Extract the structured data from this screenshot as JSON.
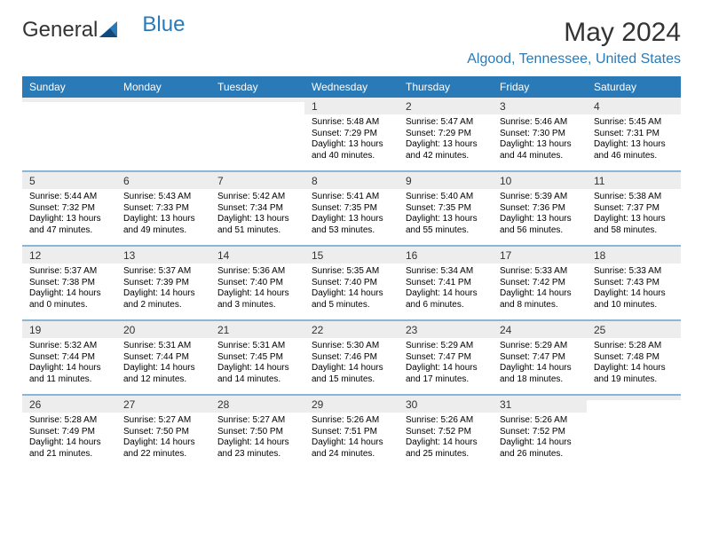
{
  "brand": {
    "part1": "General",
    "part2": "Blue"
  },
  "title": "May 2024",
  "location": "Algood, Tennessee, United States",
  "colors": {
    "accent": "#2a7ab8",
    "header_bg": "#2a7ab8",
    "header_text": "#ffffff",
    "daynum_bg": "#ededed",
    "text": "#000000",
    "logo_gray": "#555555",
    "background": "#ffffff"
  },
  "typography": {
    "title_fontsize": 30,
    "location_fontsize": 16,
    "header_fontsize": 12,
    "daynum_fontsize": 12,
    "body_fontsize": 10
  },
  "day_headers": [
    "Sunday",
    "Monday",
    "Tuesday",
    "Wednesday",
    "Thursday",
    "Friday",
    "Saturday"
  ],
  "weeks": [
    [
      {
        "day": "",
        "sunrise": "",
        "sunset": "",
        "daylight": ""
      },
      {
        "day": "",
        "sunrise": "",
        "sunset": "",
        "daylight": ""
      },
      {
        "day": "",
        "sunrise": "",
        "sunset": "",
        "daylight": ""
      },
      {
        "day": "1",
        "sunrise": "Sunrise: 5:48 AM",
        "sunset": "Sunset: 7:29 PM",
        "daylight": "Daylight: 13 hours and 40 minutes."
      },
      {
        "day": "2",
        "sunrise": "Sunrise: 5:47 AM",
        "sunset": "Sunset: 7:29 PM",
        "daylight": "Daylight: 13 hours and 42 minutes."
      },
      {
        "day": "3",
        "sunrise": "Sunrise: 5:46 AM",
        "sunset": "Sunset: 7:30 PM",
        "daylight": "Daylight: 13 hours and 44 minutes."
      },
      {
        "day": "4",
        "sunrise": "Sunrise: 5:45 AM",
        "sunset": "Sunset: 7:31 PM",
        "daylight": "Daylight: 13 hours and 46 minutes."
      }
    ],
    [
      {
        "day": "5",
        "sunrise": "Sunrise: 5:44 AM",
        "sunset": "Sunset: 7:32 PM",
        "daylight": "Daylight: 13 hours and 47 minutes."
      },
      {
        "day": "6",
        "sunrise": "Sunrise: 5:43 AM",
        "sunset": "Sunset: 7:33 PM",
        "daylight": "Daylight: 13 hours and 49 minutes."
      },
      {
        "day": "7",
        "sunrise": "Sunrise: 5:42 AM",
        "sunset": "Sunset: 7:34 PM",
        "daylight": "Daylight: 13 hours and 51 minutes."
      },
      {
        "day": "8",
        "sunrise": "Sunrise: 5:41 AM",
        "sunset": "Sunset: 7:35 PM",
        "daylight": "Daylight: 13 hours and 53 minutes."
      },
      {
        "day": "9",
        "sunrise": "Sunrise: 5:40 AM",
        "sunset": "Sunset: 7:35 PM",
        "daylight": "Daylight: 13 hours and 55 minutes."
      },
      {
        "day": "10",
        "sunrise": "Sunrise: 5:39 AM",
        "sunset": "Sunset: 7:36 PM",
        "daylight": "Daylight: 13 hours and 56 minutes."
      },
      {
        "day": "11",
        "sunrise": "Sunrise: 5:38 AM",
        "sunset": "Sunset: 7:37 PM",
        "daylight": "Daylight: 13 hours and 58 minutes."
      }
    ],
    [
      {
        "day": "12",
        "sunrise": "Sunrise: 5:37 AM",
        "sunset": "Sunset: 7:38 PM",
        "daylight": "Daylight: 14 hours and 0 minutes."
      },
      {
        "day": "13",
        "sunrise": "Sunrise: 5:37 AM",
        "sunset": "Sunset: 7:39 PM",
        "daylight": "Daylight: 14 hours and 2 minutes."
      },
      {
        "day": "14",
        "sunrise": "Sunrise: 5:36 AM",
        "sunset": "Sunset: 7:40 PM",
        "daylight": "Daylight: 14 hours and 3 minutes."
      },
      {
        "day": "15",
        "sunrise": "Sunrise: 5:35 AM",
        "sunset": "Sunset: 7:40 PM",
        "daylight": "Daylight: 14 hours and 5 minutes."
      },
      {
        "day": "16",
        "sunrise": "Sunrise: 5:34 AM",
        "sunset": "Sunset: 7:41 PM",
        "daylight": "Daylight: 14 hours and 6 minutes."
      },
      {
        "day": "17",
        "sunrise": "Sunrise: 5:33 AM",
        "sunset": "Sunset: 7:42 PM",
        "daylight": "Daylight: 14 hours and 8 minutes."
      },
      {
        "day": "18",
        "sunrise": "Sunrise: 5:33 AM",
        "sunset": "Sunset: 7:43 PM",
        "daylight": "Daylight: 14 hours and 10 minutes."
      }
    ],
    [
      {
        "day": "19",
        "sunrise": "Sunrise: 5:32 AM",
        "sunset": "Sunset: 7:44 PM",
        "daylight": "Daylight: 14 hours and 11 minutes."
      },
      {
        "day": "20",
        "sunrise": "Sunrise: 5:31 AM",
        "sunset": "Sunset: 7:44 PM",
        "daylight": "Daylight: 14 hours and 12 minutes."
      },
      {
        "day": "21",
        "sunrise": "Sunrise: 5:31 AM",
        "sunset": "Sunset: 7:45 PM",
        "daylight": "Daylight: 14 hours and 14 minutes."
      },
      {
        "day": "22",
        "sunrise": "Sunrise: 5:30 AM",
        "sunset": "Sunset: 7:46 PM",
        "daylight": "Daylight: 14 hours and 15 minutes."
      },
      {
        "day": "23",
        "sunrise": "Sunrise: 5:29 AM",
        "sunset": "Sunset: 7:47 PM",
        "daylight": "Daylight: 14 hours and 17 minutes."
      },
      {
        "day": "24",
        "sunrise": "Sunrise: 5:29 AM",
        "sunset": "Sunset: 7:47 PM",
        "daylight": "Daylight: 14 hours and 18 minutes."
      },
      {
        "day": "25",
        "sunrise": "Sunrise: 5:28 AM",
        "sunset": "Sunset: 7:48 PM",
        "daylight": "Daylight: 14 hours and 19 minutes."
      }
    ],
    [
      {
        "day": "26",
        "sunrise": "Sunrise: 5:28 AM",
        "sunset": "Sunset: 7:49 PM",
        "daylight": "Daylight: 14 hours and 21 minutes."
      },
      {
        "day": "27",
        "sunrise": "Sunrise: 5:27 AM",
        "sunset": "Sunset: 7:50 PM",
        "daylight": "Daylight: 14 hours and 22 minutes."
      },
      {
        "day": "28",
        "sunrise": "Sunrise: 5:27 AM",
        "sunset": "Sunset: 7:50 PM",
        "daylight": "Daylight: 14 hours and 23 minutes."
      },
      {
        "day": "29",
        "sunrise": "Sunrise: 5:26 AM",
        "sunset": "Sunset: 7:51 PM",
        "daylight": "Daylight: 14 hours and 24 minutes."
      },
      {
        "day": "30",
        "sunrise": "Sunrise: 5:26 AM",
        "sunset": "Sunset: 7:52 PM",
        "daylight": "Daylight: 14 hours and 25 minutes."
      },
      {
        "day": "31",
        "sunrise": "Sunrise: 5:26 AM",
        "sunset": "Sunset: 7:52 PM",
        "daylight": "Daylight: 14 hours and 26 minutes."
      },
      {
        "day": "",
        "sunrise": "",
        "sunset": "",
        "daylight": ""
      }
    ]
  ]
}
